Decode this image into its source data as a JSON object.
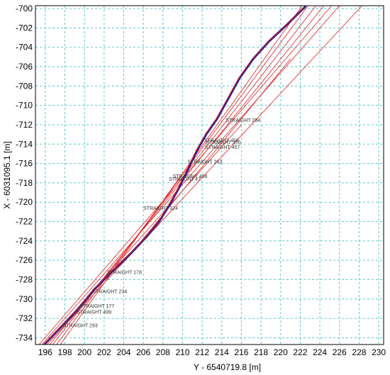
{
  "colors": {
    "grid": "#5bc8c8",
    "frame": "#000000",
    "straight": "#e02020",
    "measured_blue": "#1a1aa0",
    "measured_red": "#d01818"
  },
  "chart_data": {
    "type": "line",
    "title": "",
    "xlabel": "Y - 6540719.8 [m]",
    "ylabel": "X - 6031095.1 [m]",
    "xlim": [
      195,
      230.5
    ],
    "ylim": [
      -734.7,
      -699.7
    ],
    "grid": true,
    "x_ticks": [
      196,
      198,
      200,
      202,
      204,
      206,
      208,
      210,
      212,
      214,
      216,
      218,
      220,
      222,
      224,
      226,
      228,
      230
    ],
    "y_ticks": [
      -700,
      -702,
      -704,
      -706,
      -708,
      -710,
      -712,
      -714,
      -716,
      -718,
      -720,
      -722,
      -724,
      -726,
      -728,
      -730,
      -732,
      -734
    ],
    "series": [
      {
        "color": "blue",
        "x": [
          195.8,
          197.5,
          199.2,
          201.0,
          203.0,
          204.8,
          206.3,
          207.6,
          208.6,
          209.7,
          210.6,
          211.5,
          212.4,
          213.5,
          214.6,
          215.8,
          217.2,
          218.8,
          220.5,
          222.5
        ],
        "y": [
          -734.8,
          -733.0,
          -731.2,
          -729.0,
          -727.0,
          -725.2,
          -723.6,
          -722.0,
          -720.4,
          -718.4,
          -716.5,
          -714.6,
          -713.0,
          -711.4,
          -709.4,
          -707.2,
          -705.2,
          -703.4,
          -701.8,
          -699.8
        ]
      },
      {
        "color": "red",
        "x": [
          195.8,
          197.5,
          199.2,
          201.0,
          203.0,
          204.8,
          206.3,
          207.6,
          208.6,
          209.7,
          210.6,
          211.5,
          212.4,
          213.5,
          214.6,
          215.8,
          217.2,
          218.8,
          220.5,
          222.5
        ],
        "y": [
          -734.8,
          -733.0,
          -731.2,
          -729.0,
          -727.0,
          -725.2,
          -723.6,
          -722.0,
          -720.4,
          -718.4,
          -716.5,
          -714.6,
          -713.0,
          -711.4,
          -709.4,
          -707.2,
          -705.2,
          -703.4,
          -701.8,
          -699.8
        ]
      }
    ],
    "lines": [
      {
        "x1": 195.2,
        "y1": -734.9,
        "x2": 225.2,
        "y2": -699.7
      },
      {
        "x1": 195.4,
        "y1": -735.0,
        "x2": 226.0,
        "y2": -699.7
      },
      {
        "x1": 196.0,
        "y1": -734.9,
        "x2": 228.3,
        "y2": -699.7
      },
      {
        "x1": 196.3,
        "y1": -734.9,
        "x2": 224.4,
        "y2": -699.7
      },
      {
        "x1": 196.6,
        "y1": -734.9,
        "x2": 223.6,
        "y2": -699.7
      },
      {
        "x1": 197.0,
        "y1": -734.9,
        "x2": 222.8,
        "y2": -699.7
      },
      {
        "x1": 197.4,
        "y1": -734.9,
        "x2": 222.2,
        "y2": -699.7
      },
      {
        "x1": 196.6,
        "y1": -734.0,
        "x2": 216.0,
        "y2": -712.0
      },
      {
        "x1": 205.0,
        "y1": -725.0,
        "x2": 221.0,
        "y2": -705.2
      }
    ],
    "annotations": [
      {
        "text": "STRAIGHT 284",
        "x": 214.4,
        "y": -711.7
      },
      {
        "text": "STRAIGHT 450",
        "x": 212.2,
        "y": -713.8
      },
      {
        "text": "STRAIGHT 370",
        "x": 212.4,
        "y": -714.0
      },
      {
        "text": "STRAIGHT 457",
        "x": 212.3,
        "y": -714.5
      },
      {
        "text": "STRAIGHT 363",
        "x": 210.5,
        "y": -716.0
      },
      {
        "text": "STRAIGHT 458",
        "x": 209.0,
        "y": -717.5
      },
      {
        "text": "STRAIGHT 47",
        "x": 208.6,
        "y": -717.8
      },
      {
        "text": "STRAIGHT 324",
        "x": 206.0,
        "y": -720.8
      },
      {
        "text": "STRAIGHT 178",
        "x": 202.3,
        "y": -727.4
      },
      {
        "text": "STRAIGHT 234",
        "x": 200.8,
        "y": -729.4
      },
      {
        "text": "STRAIGHT 177",
        "x": 199.5,
        "y": -730.9
      },
      {
        "text": "STRAIGHT 499",
        "x": 199.2,
        "y": -731.5
      },
      {
        "text": "STRAIGHT 293",
        "x": 197.8,
        "y": -732.9
      }
    ]
  }
}
